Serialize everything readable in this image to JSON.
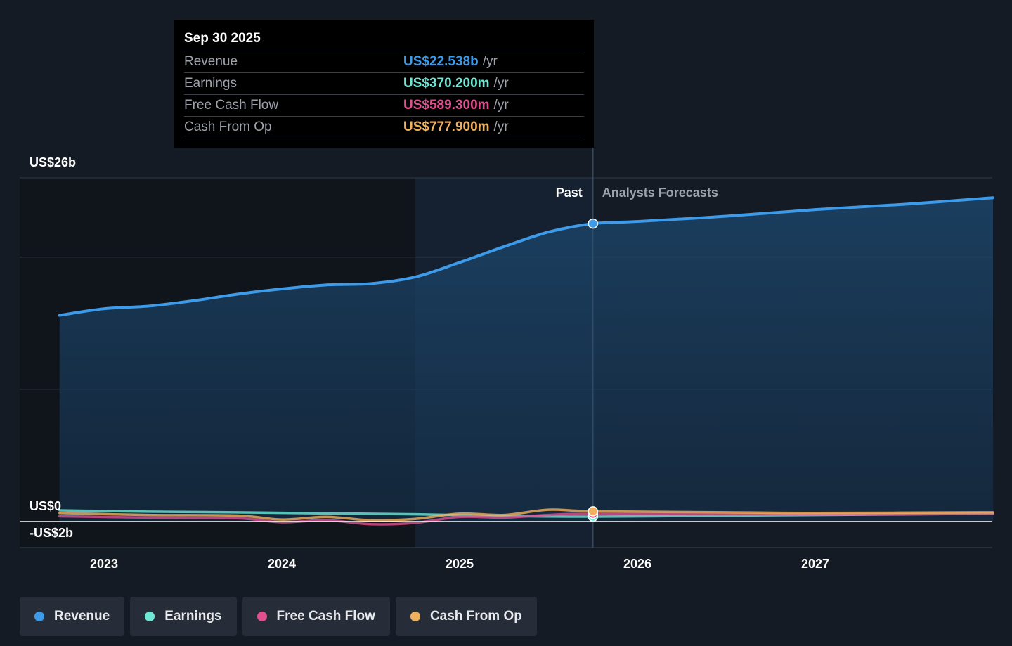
{
  "tooltip": {
    "date": "Sep 30 2025",
    "rows": [
      {
        "label": "Revenue",
        "value": "US$22.538b",
        "unit": "/yr",
        "color": "#3d9be9"
      },
      {
        "label": "Earnings",
        "value": "US$370.200m",
        "unit": "/yr",
        "color": "#6ee7d4"
      },
      {
        "label": "Free Cash Flow",
        "value": "US$589.300m",
        "unit": "/yr",
        "color": "#e0508f"
      },
      {
        "label": "Cash From Op",
        "value": "US$777.900m",
        "unit": "/yr",
        "color": "#f0b15e"
      }
    ]
  },
  "labels": {
    "y_top": "US$26b",
    "y_zero": "US$0",
    "y_bottom": "-US$2b",
    "past": "Past",
    "forecast": "Analysts Forecasts"
  },
  "legend": [
    {
      "label": "Revenue",
      "color": "#3d9be9"
    },
    {
      "label": "Earnings",
      "color": "#6ee7d4"
    },
    {
      "label": "Free Cash Flow",
      "color": "#e0508f"
    },
    {
      "label": "Cash From Op",
      "color": "#f0b15e"
    }
  ],
  "chart_data": {
    "type": "area",
    "x_ticks": [
      "2023",
      "2024",
      "2025",
      "2026",
      "2027"
    ],
    "ylim": [
      -2,
      26
    ],
    "y_unit": "US$ billions",
    "past_cutoff": 2025.75,
    "series": [
      {
        "name": "Revenue",
        "color": "#3d9be9",
        "fill": true,
        "x": [
          2022.75,
          2023.0,
          2023.25,
          2023.5,
          2023.75,
          2024.0,
          2024.25,
          2024.5,
          2024.75,
          2025.0,
          2025.25,
          2025.5,
          2025.75,
          2026.0,
          2026.5,
          2027.0,
          2027.5,
          2028.0
        ],
        "y": [
          15.6,
          16.1,
          16.3,
          16.7,
          17.2,
          17.6,
          17.9,
          18.0,
          18.5,
          19.6,
          20.8,
          21.9,
          22.538,
          22.7,
          23.1,
          23.6,
          24.0,
          24.5
        ]
      },
      {
        "name": "Earnings",
        "color": "#6ee7d4",
        "fill": false,
        "x": [
          2022.75,
          2023.25,
          2023.75,
          2024.25,
          2024.75,
          2025.25,
          2025.75,
          2026.5,
          2027.0,
          2028.0
        ],
        "y": [
          0.85,
          0.75,
          0.7,
          0.62,
          0.55,
          0.42,
          0.3702,
          0.45,
          0.5,
          0.6
        ]
      },
      {
        "name": "Free Cash Flow",
        "color": "#e0508f",
        "fill": false,
        "x": [
          2022.75,
          2023.25,
          2023.75,
          2024.0,
          2024.25,
          2024.5,
          2024.75,
          2025.0,
          2025.25,
          2025.5,
          2025.75,
          2026.5,
          2027.0,
          2028.0
        ],
        "y": [
          0.4,
          0.3,
          0.25,
          -0.05,
          0.1,
          -0.2,
          -0.1,
          0.35,
          0.3,
          0.5,
          0.5893,
          0.55,
          0.55,
          0.6
        ]
      },
      {
        "name": "Cash From Op",
        "color": "#f0b15e",
        "fill": false,
        "x": [
          2022.75,
          2023.25,
          2023.75,
          2024.0,
          2024.25,
          2024.5,
          2024.75,
          2025.0,
          2025.25,
          2025.5,
          2025.75,
          2026.5,
          2027.0,
          2028.0
        ],
        "y": [
          0.65,
          0.5,
          0.45,
          0.15,
          0.35,
          0.1,
          0.2,
          0.6,
          0.5,
          0.9,
          0.7779,
          0.7,
          0.65,
          0.7
        ]
      }
    ]
  }
}
